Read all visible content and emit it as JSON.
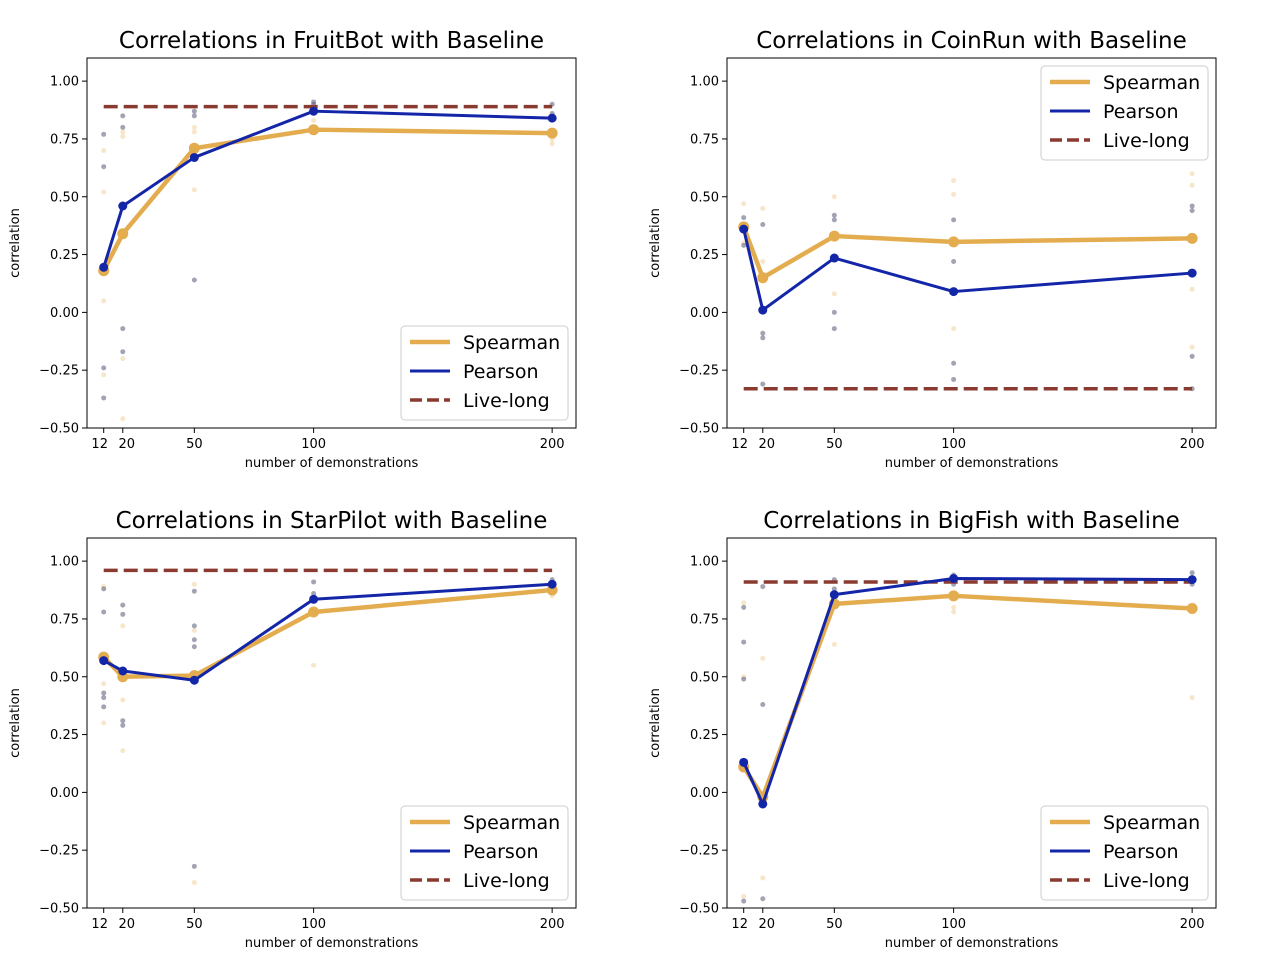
{
  "chart_data": [
    {
      "type": "line",
      "title": "Correlations in FruitBot with Baseline",
      "xlabel": "number of demonstrations",
      "ylabel": "correlation",
      "x": [
        12,
        20,
        50,
        100,
        200
      ],
      "x_tick_labels": [
        "12",
        "20",
        "50",
        "100",
        "200"
      ],
      "xlim": [
        5,
        210
      ],
      "ylim": [
        -0.5,
        1.1
      ],
      "y_ticks": [
        -0.5,
        -0.25,
        0.0,
        0.25,
        0.5,
        0.75,
        1.0
      ],
      "y_tick_labels": [
        "−0.50",
        "−0.25",
        "0.00",
        "0.25",
        "0.50",
        "0.75",
        "1.00"
      ],
      "legend_position": "lower-right",
      "series": [
        {
          "name": "Spearman",
          "values": [
            0.18,
            0.34,
            0.71,
            0.79,
            0.775
          ],
          "color": "#e3ad4f"
        },
        {
          "name": "Pearson",
          "values": [
            0.195,
            0.46,
            0.67,
            0.87,
            0.84
          ],
          "color": "#1426a8"
        },
        {
          "name": "Live-long",
          "values": [
            0.89,
            0.89,
            0.89,
            0.89,
            0.89
          ],
          "color": "#8b3a30",
          "dashed": true
        }
      ],
      "scatter_spearman": [
        [
          12,
          0.7
        ],
        [
          12,
          0.52
        ],
        [
          12,
          0.05
        ],
        [
          12,
          -0.27
        ],
        [
          20,
          0.78
        ],
        [
          20,
          0.76
        ],
        [
          20,
          -0.2
        ],
        [
          20,
          -0.46
        ],
        [
          50,
          0.8
        ],
        [
          50,
          0.78
        ],
        [
          50,
          0.53
        ],
        [
          100,
          0.83
        ],
        [
          100,
          0.8
        ],
        [
          200,
          0.75
        ],
        [
          200,
          0.73
        ]
      ],
      "scatter_pearson": [
        [
          12,
          0.77
        ],
        [
          12,
          0.63
        ],
        [
          12,
          -0.24
        ],
        [
          12,
          -0.37
        ],
        [
          20,
          0.85
        ],
        [
          20,
          0.8
        ],
        [
          20,
          -0.07
        ],
        [
          20,
          -0.17
        ],
        [
          50,
          0.87
        ],
        [
          50,
          0.85
        ],
        [
          50,
          0.14
        ],
        [
          100,
          0.9
        ],
        [
          100,
          0.91
        ],
        [
          200,
          0.9
        ],
        [
          200,
          0.86
        ]
      ]
    },
    {
      "type": "line",
      "title": "Correlations in CoinRun with Baseline",
      "xlabel": "number of demonstrations",
      "ylabel": "correlation",
      "x": [
        12,
        20,
        50,
        100,
        200
      ],
      "x_tick_labels": [
        "12",
        "20",
        "50",
        "100",
        "200"
      ],
      "xlim": [
        5,
        210
      ],
      "ylim": [
        -0.5,
        1.1
      ],
      "y_ticks": [
        -0.5,
        -0.25,
        0.0,
        0.25,
        0.5,
        0.75,
        1.0
      ],
      "y_tick_labels": [
        "−0.50",
        "−0.25",
        "0.00",
        "0.25",
        "0.50",
        "0.75",
        "1.00"
      ],
      "legend_position": "upper-right",
      "series": [
        {
          "name": "Spearman",
          "values": [
            0.37,
            0.15,
            0.33,
            0.305,
            0.32
          ],
          "color": "#e3ad4f"
        },
        {
          "name": "Pearson",
          "values": [
            0.36,
            0.01,
            0.235,
            0.09,
            0.17
          ],
          "color": "#1426a8"
        },
        {
          "name": "Live-long",
          "values": [
            -0.33,
            -0.33,
            -0.33,
            -0.33,
            -0.33
          ],
          "color": "#8b3a30",
          "dashed": true
        }
      ],
      "scatter_spearman": [
        [
          12,
          0.47
        ],
        [
          12,
          0.3
        ],
        [
          20,
          0.45
        ],
        [
          20,
          0.22
        ],
        [
          50,
          0.5
        ],
        [
          50,
          0.08
        ],
        [
          100,
          0.57
        ],
        [
          100,
          0.51
        ],
        [
          100,
          -0.07
        ],
        [
          200,
          0.6
        ],
        [
          200,
          0.55
        ],
        [
          200,
          0.1
        ],
        [
          200,
          -0.15
        ]
      ],
      "scatter_pearson": [
        [
          12,
          0.41
        ],
        [
          12,
          0.29
        ],
        [
          20,
          0.38
        ],
        [
          20,
          -0.09
        ],
        [
          20,
          -0.11
        ],
        [
          20,
          -0.31
        ],
        [
          50,
          0.42
        ],
        [
          50,
          0.4
        ],
        [
          50,
          0.0
        ],
        [
          50,
          -0.07
        ],
        [
          100,
          0.4
        ],
        [
          100,
          0.22
        ],
        [
          100,
          -0.22
        ],
        [
          100,
          -0.29
        ],
        [
          200,
          0.46
        ],
        [
          200,
          0.44
        ],
        [
          200,
          -0.19
        ],
        [
          200,
          -0.33
        ]
      ]
    },
    {
      "type": "line",
      "title": "Correlations in StarPilot with Baseline",
      "xlabel": "number of demonstrations",
      "ylabel": "correlation",
      "x": [
        12,
        20,
        50,
        100,
        200
      ],
      "x_tick_labels": [
        "12",
        "20",
        "50",
        "100",
        "200"
      ],
      "xlim": [
        5,
        210
      ],
      "ylim": [
        -0.5,
        1.1
      ],
      "y_ticks": [
        -0.5,
        -0.25,
        0.0,
        0.25,
        0.5,
        0.75,
        1.0
      ],
      "y_tick_labels": [
        "−0.50",
        "−0.25",
        "0.00",
        "0.25",
        "0.50",
        "0.75",
        "1.00"
      ],
      "legend_position": "lower-right",
      "series": [
        {
          "name": "Spearman",
          "values": [
            0.585,
            0.5,
            0.505,
            0.78,
            0.875
          ],
          "color": "#e3ad4f"
        },
        {
          "name": "Pearson",
          "values": [
            0.57,
            0.525,
            0.485,
            0.835,
            0.9
          ],
          "color": "#1426a8"
        },
        {
          "name": "Live-long",
          "values": [
            0.96,
            0.96,
            0.96,
            0.96,
            0.96
          ],
          "color": "#8b3a30",
          "dashed": true
        }
      ],
      "scatter_spearman": [
        [
          12,
          0.89
        ],
        [
          12,
          0.47
        ],
        [
          12,
          0.3
        ],
        [
          20,
          0.72
        ],
        [
          20,
          0.4
        ],
        [
          20,
          0.18
        ],
        [
          50,
          0.9
        ],
        [
          50,
          0.7
        ],
        [
          50,
          -0.39
        ],
        [
          100,
          0.55
        ],
        [
          200,
          0.85
        ]
      ],
      "scatter_pearson": [
        [
          12,
          0.88
        ],
        [
          12,
          0.78
        ],
        [
          12,
          0.43
        ],
        [
          12,
          0.41
        ],
        [
          12,
          0.37
        ],
        [
          20,
          0.81
        ],
        [
          20,
          0.77
        ],
        [
          20,
          0.31
        ],
        [
          20,
          0.29
        ],
        [
          50,
          0.87
        ],
        [
          50,
          0.72
        ],
        [
          50,
          0.66
        ],
        [
          50,
          0.63
        ],
        [
          50,
          -0.32
        ],
        [
          100,
          0.91
        ],
        [
          100,
          0.86
        ],
        [
          200,
          0.92
        ],
        [
          200,
          0.88
        ]
      ]
    },
    {
      "type": "line",
      "title": "Correlations in BigFish with Baseline",
      "xlabel": "number of demonstrations",
      "ylabel": "correlation",
      "x": [
        12,
        20,
        50,
        100,
        200
      ],
      "x_tick_labels": [
        "12",
        "20",
        "50",
        "100",
        "200"
      ],
      "xlim": [
        5,
        210
      ],
      "ylim": [
        -0.5,
        1.1
      ],
      "y_ticks": [
        -0.5,
        -0.25,
        0.0,
        0.25,
        0.5,
        0.75,
        1.0
      ],
      "y_tick_labels": [
        "−0.50",
        "−0.25",
        "0.00",
        "0.25",
        "0.50",
        "0.75",
        "1.00"
      ],
      "legend_position": "lower-right",
      "series": [
        {
          "name": "Spearman",
          "values": [
            0.11,
            -0.02,
            0.815,
            0.85,
            0.795
          ],
          "color": "#e3ad4f"
        },
        {
          "name": "Pearson",
          "values": [
            0.13,
            -0.05,
            0.855,
            0.925,
            0.92
          ],
          "color": "#1426a8"
        },
        {
          "name": "Live-long",
          "values": [
            0.91,
            0.91,
            0.91,
            0.91,
            0.91
          ],
          "color": "#8b3a30",
          "dashed": true
        }
      ],
      "scatter_spearman": [
        [
          12,
          0.82
        ],
        [
          12,
          0.5
        ],
        [
          12,
          -0.45
        ],
        [
          20,
          0.58
        ],
        [
          20,
          -0.37
        ],
        [
          50,
          0.85
        ],
        [
          50,
          0.64
        ],
        [
          100,
          0.8
        ],
        [
          100,
          0.78
        ],
        [
          200,
          0.8
        ],
        [
          200,
          0.41
        ]
      ],
      "scatter_pearson": [
        [
          12,
          0.8
        ],
        [
          12,
          0.65
        ],
        [
          12,
          0.49
        ],
        [
          12,
          -0.47
        ],
        [
          20,
          0.89
        ],
        [
          20,
          0.38
        ],
        [
          20,
          -0.46
        ],
        [
          50,
          0.92
        ],
        [
          50,
          0.88
        ],
        [
          100,
          0.94
        ],
        [
          100,
          0.9
        ],
        [
          200,
          0.95
        ],
        [
          200,
          0.9
        ]
      ]
    }
  ]
}
